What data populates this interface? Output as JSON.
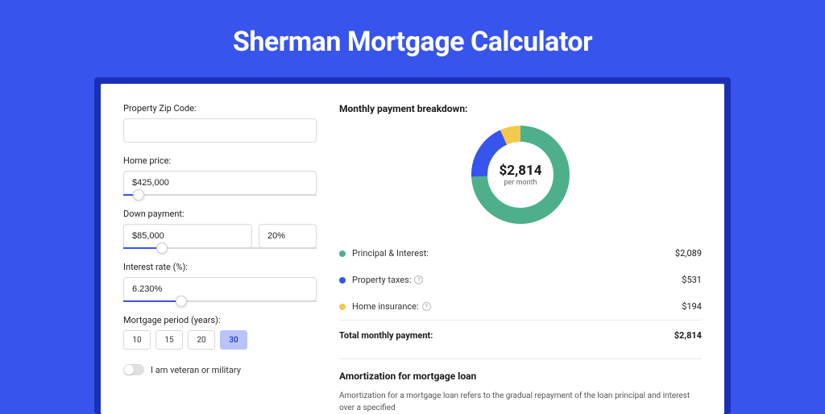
{
  "title": "Sherman Mortgage Calculator",
  "colors": {
    "page_bg": "#3754ed",
    "shadow_bg": "#1a2fb8",
    "card_bg": "#ffffff",
    "accent": "#3754ed",
    "principal": "#4db08a",
    "taxes": "#3754ed",
    "insurance": "#f2c94c"
  },
  "form": {
    "zip": {
      "label": "Property Zip Code:",
      "value": ""
    },
    "home_price": {
      "label": "Home price:",
      "value": "$425,000",
      "slider_pct": 8
    },
    "down_payment": {
      "label": "Down payment:",
      "value": "$85,000",
      "pct": "20%",
      "slider_pct": 20
    },
    "interest": {
      "label": "Interest rate (%):",
      "value": "6.230%",
      "slider_pct": 30
    },
    "period": {
      "label": "Mortgage period (years):",
      "options": [
        "10",
        "15",
        "20",
        "30"
      ],
      "selected": "30"
    },
    "veteran": {
      "label": "I am veteran or military",
      "on": false
    }
  },
  "breakdown": {
    "title": "Monthly payment breakdown:",
    "center_amount": "$2,814",
    "center_sub": "per month",
    "donut": {
      "size": 122,
      "thickness": 20,
      "segments": [
        {
          "key": "principal",
          "pct": 74.2,
          "color": "#4db08a"
        },
        {
          "key": "taxes",
          "pct": 18.9,
          "color": "#3754ed"
        },
        {
          "key": "insurance",
          "pct": 6.9,
          "color": "#f2c94c"
        }
      ]
    },
    "items": [
      {
        "label": "Principal & Interest:",
        "value": "$2,089",
        "color": "#4db08a",
        "help": false
      },
      {
        "label": "Property taxes:",
        "value": "$531",
        "color": "#3754ed",
        "help": true
      },
      {
        "label": "Home insurance:",
        "value": "$194",
        "color": "#f2c94c",
        "help": true
      }
    ],
    "total": {
      "label": "Total monthly payment:",
      "value": "$2,814"
    }
  },
  "amortization": {
    "title": "Amortization for mortgage loan",
    "text": "Amortization for a mortgage loan refers to the gradual repayment of the loan principal and interest over a specified"
  }
}
